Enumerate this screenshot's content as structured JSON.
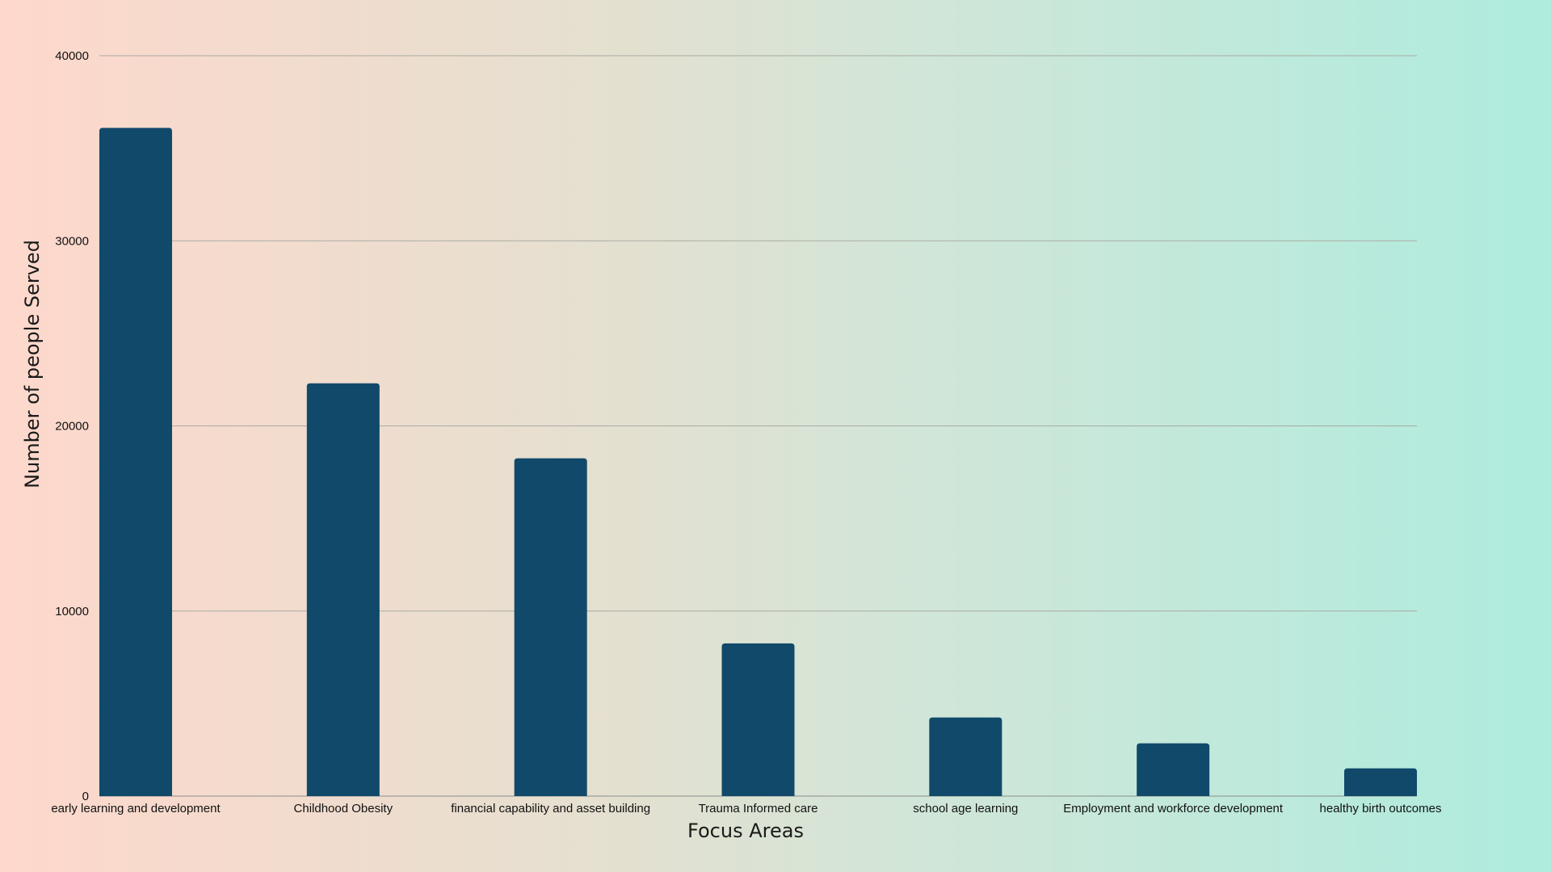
{
  "chart_data": {
    "type": "bar",
    "title": "",
    "xlabel": "Focus Areas",
    "ylabel": "Number of people Served",
    "categories": [
      "early learning and development",
      "Childhood Obesity",
      "financial capability and asset building",
      "Trauma Informed care",
      "school age learning",
      "Employment and workforce development",
      "healthy birth outcomes"
    ],
    "values": [
      36100,
      22300,
      18250,
      8250,
      4250,
      2850,
      1500
    ],
    "ylim": [
      0,
      40000
    ],
    "yticks": [
      0,
      10000,
      20000,
      30000,
      40000
    ],
    "grid": true,
    "legend": "none",
    "bar_color": "#10496a"
  }
}
